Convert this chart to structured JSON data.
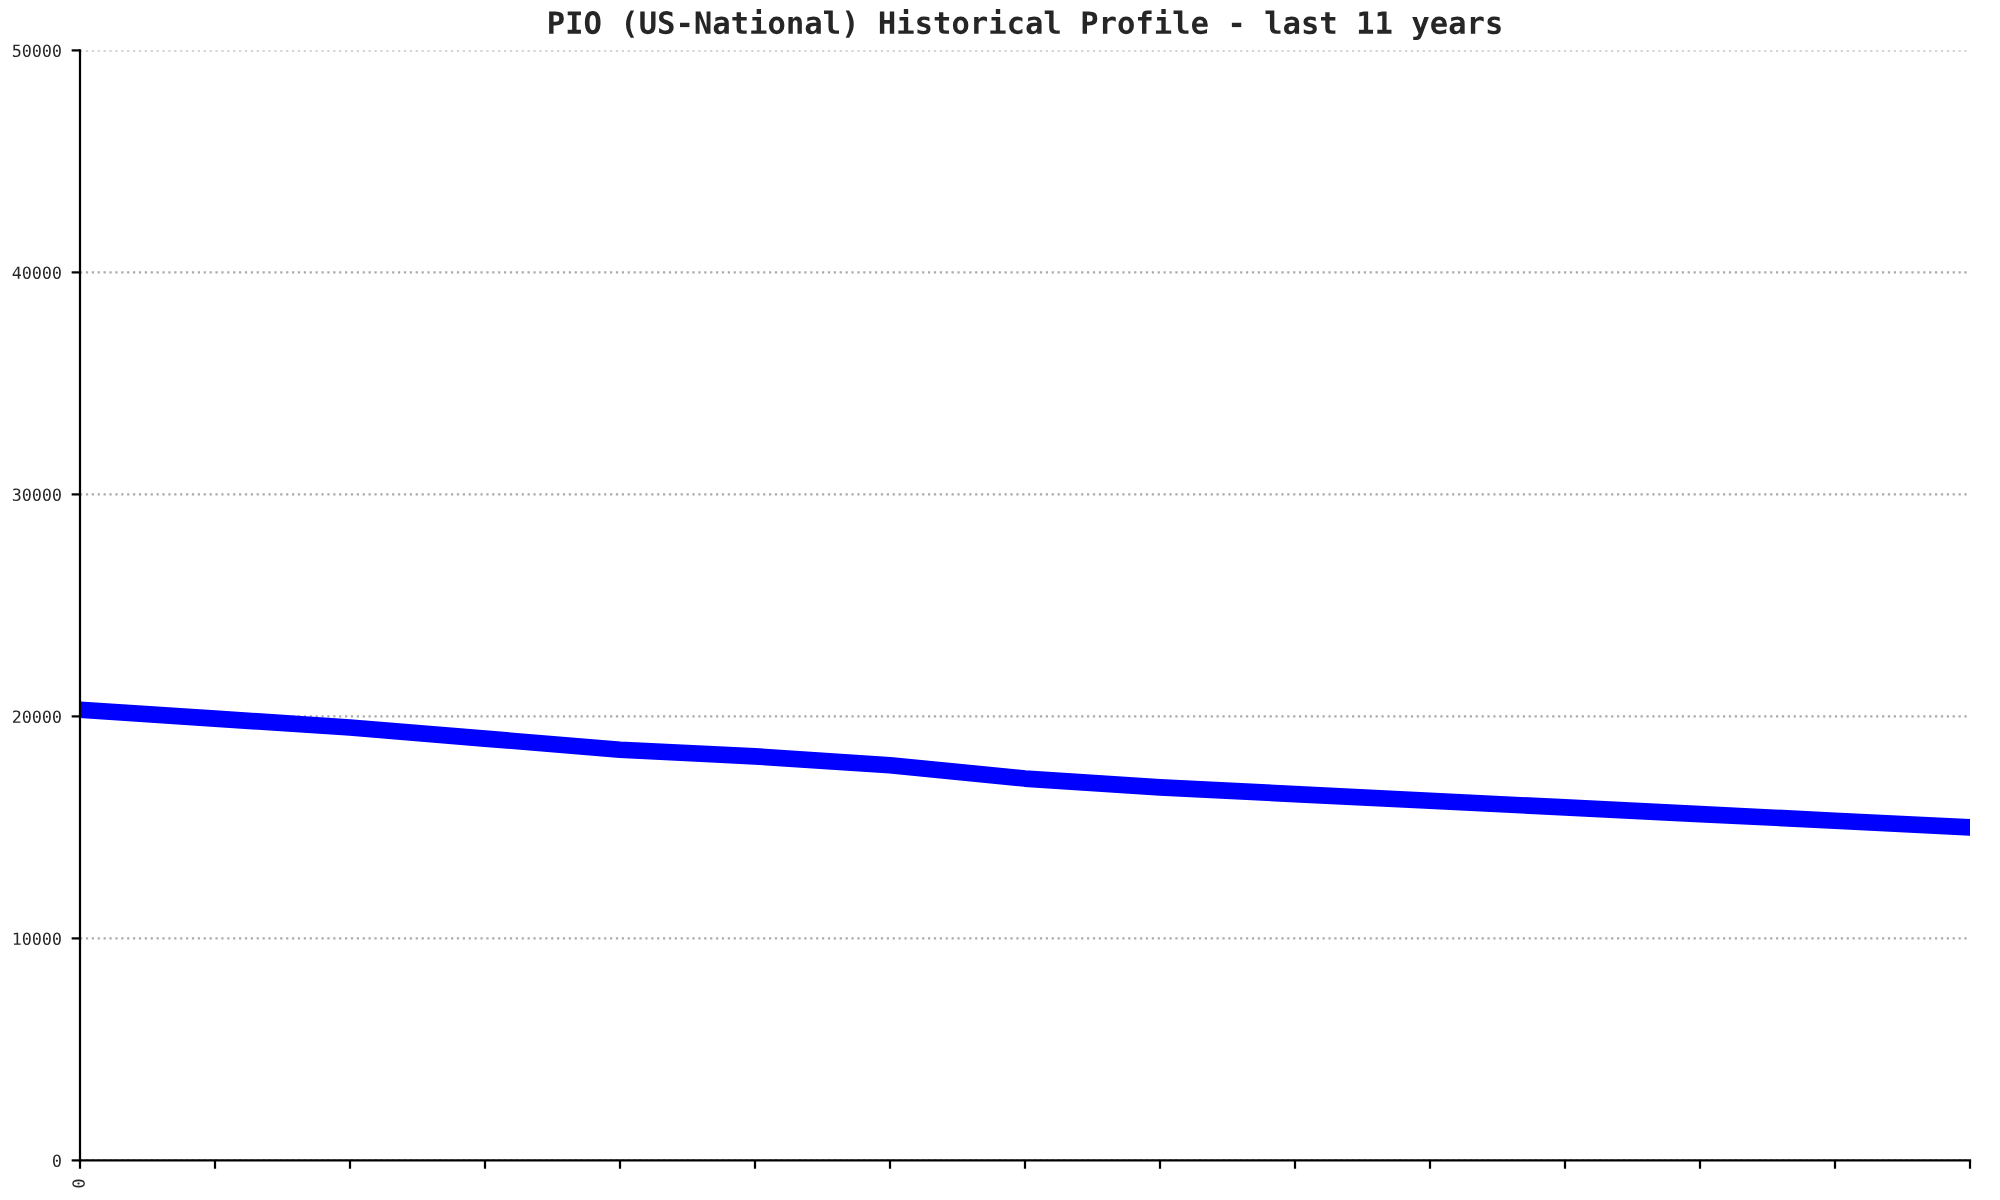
{
  "chart_data": {
    "type": "line",
    "title": "PIO (US-National) Historical Profile - last 11 years",
    "categories": [
      "0",
      null,
      null,
      null,
      null,
      null,
      null,
      null,
      null,
      null,
      null,
      null,
      null,
      null,
      null
    ],
    "series": [
      {
        "color": "#0000ff",
        "values": [
          20300,
          19900,
          19500,
          19000,
          18500,
          18200,
          17800,
          17200,
          16800,
          16500,
          16200,
          15900,
          15600,
          15300,
          15000
        ]
      }
    ],
    "ylim": [
      0,
      50000
    ],
    "yticks": [
      0,
      10000,
      20000,
      30000,
      40000,
      50000
    ],
    "grid": "y",
    "line_style": "solid",
    "marker": "none"
  }
}
